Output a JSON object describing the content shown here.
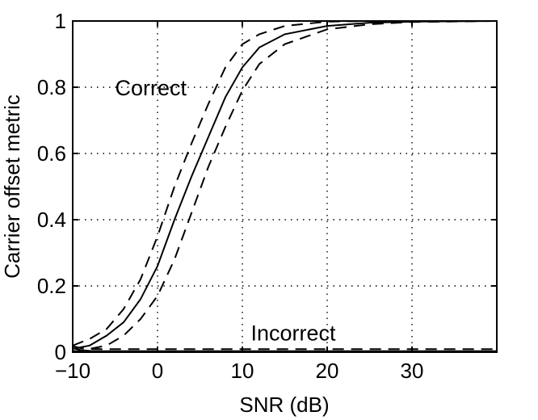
{
  "chart_data": {
    "type": "line",
    "title": "",
    "xlabel": "SNR (dB)",
    "ylabel": "Carrier offset metric",
    "xlim": [
      -10,
      40
    ],
    "ylim": [
      0,
      1
    ],
    "xticks": [
      -10,
      0,
      10,
      20,
      30
    ],
    "xtick_labels": [
      "−10",
      "0",
      "10",
      "20",
      "30"
    ],
    "yticks": [
      0,
      0.2,
      0.4,
      0.6,
      0.8,
      1
    ],
    "ytick_labels": [
      "0",
      "0.2",
      "0.4",
      "0.6",
      "0.8",
      "1"
    ],
    "grid": true,
    "annotations": [
      {
        "text": "Correct",
        "x": -5,
        "y": 0.8
      },
      {
        "text": "Incorrect",
        "x": 11,
        "y": 0.06
      }
    ],
    "series": [
      {
        "style": "solid",
        "x": [
          -10,
          -8,
          -6,
          -4,
          -2,
          0,
          2,
          4,
          6,
          8,
          10,
          12,
          15,
          20,
          25,
          30,
          40
        ],
        "y": [
          0.01,
          0.02,
          0.05,
          0.09,
          0.16,
          0.26,
          0.4,
          0.53,
          0.65,
          0.77,
          0.86,
          0.92,
          0.96,
          0.985,
          0.995,
          0.998,
          1.0
        ]
      },
      {
        "style": "dashed",
        "x": [
          -10,
          -8,
          -6,
          -4,
          -2,
          0,
          2,
          4,
          6,
          8,
          10,
          12,
          15,
          20,
          25,
          30,
          40
        ],
        "y": [
          0.02,
          0.04,
          0.07,
          0.13,
          0.22,
          0.35,
          0.5,
          0.63,
          0.75,
          0.86,
          0.93,
          0.96,
          0.985,
          0.998,
          1.0,
          1.0,
          1.0
        ]
      },
      {
        "style": "dashed",
        "x": [
          -10,
          -8,
          -6,
          -4,
          -2,
          0,
          2,
          4,
          6,
          8,
          10,
          12,
          15,
          20,
          25,
          30,
          40
        ],
        "y": [
          0.0,
          0.01,
          0.02,
          0.05,
          0.1,
          0.17,
          0.28,
          0.42,
          0.56,
          0.68,
          0.79,
          0.87,
          0.93,
          0.975,
          0.99,
          0.997,
          1.0
        ]
      },
      {
        "style": "solid",
        "x": [
          -10,
          -9,
          -8,
          -6,
          0,
          10,
          20,
          30,
          40
        ],
        "y": [
          0.012,
          0.006,
          0.004,
          0.003,
          0.003,
          0.003,
          0.003,
          0.003,
          0.003
        ]
      },
      {
        "style": "dashed",
        "x": [
          -10,
          -9,
          -8,
          -6,
          0,
          10,
          20,
          30,
          40
        ],
        "y": [
          0.018,
          0.012,
          0.01,
          0.009,
          0.009,
          0.009,
          0.009,
          0.009,
          0.009
        ]
      },
      {
        "style": "dashed",
        "x": [
          -10,
          -9,
          -8,
          -6,
          0,
          10,
          20,
          30,
          40
        ],
        "y": [
          0.004,
          0.002,
          0.001,
          0.0005,
          0.0,
          0.0,
          0.0,
          0.0,
          0.0
        ]
      }
    ]
  }
}
